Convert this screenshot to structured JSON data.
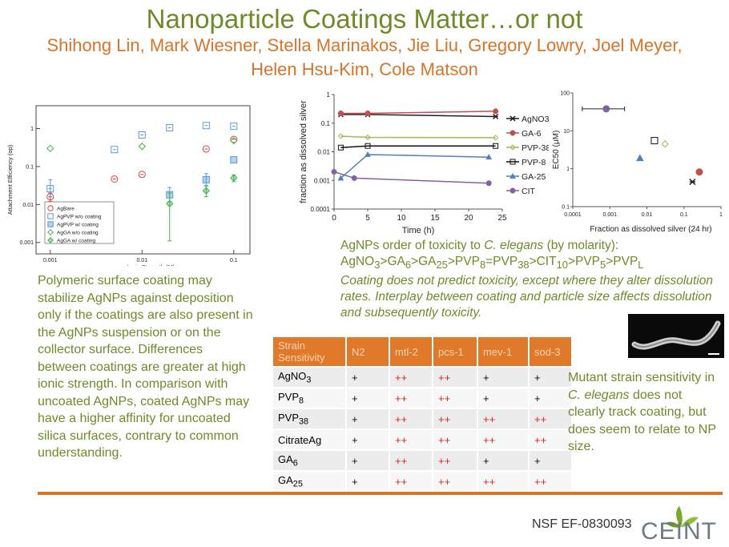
{
  "title": "Nanoparticle Coatings Matter…or not",
  "authors": "Shihong Lin, Mark Wiesner, Stella Marinakos, Jie Liu, Gregory Lowry, Joel Meyer, Helen Hsu-Kim, Cole Matson",
  "left_text": "Polymeric surface coating may stabilize AgNPs against deposition only if the coatings are also present in the AgNPs suspension or on the collector surface. Differences between coatings are greater at high ionic strength. In comparison with uncoated AgNPs, coated AgNPs may have a higher affinity for uncoated silica surfaces, contrary to common understanding.",
  "toxicity": {
    "line1_a": "AgNPs order of toxicity to ",
    "line1_species": "C. elegans",
    "line1_b": " (by molarity):",
    "note": "Coating does not predict toxicity, except where they alter dissolution rates. Interplay between coating and particle size affects dissolution and subsequently toxicity."
  },
  "right_text": {
    "a": "Mutant strain sensitivity in ",
    "species": "C. elegans",
    "b": " does not clearly track coating, but does seem to relate to NP size."
  },
  "table": {
    "headers": [
      "Strain Sensitivity",
      "N2",
      "mtl-2",
      "pcs-1",
      "mev-1",
      "sod-3"
    ],
    "rows": [
      {
        "base": "AgNO",
        "sub": "3",
        "v": [
          "+",
          "++",
          "++",
          "+",
          "+"
        ]
      },
      {
        "base": "PVP",
        "sub": "8",
        "v": [
          "+",
          "++",
          "++",
          "+",
          "+"
        ]
      },
      {
        "base": "PVP",
        "sub": "38",
        "v": [
          "+",
          "++",
          "++",
          "++",
          "++"
        ]
      },
      {
        "base": "CitrateAg",
        "sub": "",
        "v": [
          "+",
          "++",
          "++",
          "++",
          "++"
        ]
      },
      {
        "base": "GA",
        "sub": "6",
        "v": [
          "+",
          "++",
          "++",
          "+",
          "+"
        ]
      },
      {
        "base": "GA",
        "sub": "25",
        "v": [
          "+",
          "++",
          "++",
          "++",
          "++"
        ]
      }
    ]
  },
  "footer": {
    "nsf": "NSF EF-0830093",
    "logo_text": "CEINT"
  },
  "chart_data": [
    {
      "type": "scatter",
      "xlabel": "Ionic Strength (M)",
      "ylabel": "Attachment Efficiency (αp)",
      "x_scale": "log",
      "y_scale": "log",
      "xlim": [
        0.0007,
        0.15
      ],
      "ylim": [
        0.0005,
        4
      ],
      "x_ticks": [
        {
          "v": 0.001,
          "l": "0.001"
        },
        {
          "v": 0.01,
          "l": "0.01"
        },
        {
          "v": 0.1,
          "l": "0.1"
        }
      ],
      "y_ticks": [
        {
          "v": 0.001,
          "l": "0.001"
        },
        {
          "v": 0.01,
          "l": "0.01"
        },
        {
          "v": 0.1,
          "l": "0.1"
        },
        {
          "v": 1,
          "l": "1"
        }
      ],
      "legend_position": "bottom-left",
      "series": [
        {
          "name": "AgBare",
          "marker": "circle",
          "color": "#e04040",
          "points": [
            {
              "x": 0.001,
              "y": 0.016,
              "lo": 0.012,
              "hi": 0.02
            },
            {
              "x": 0.005,
              "y": 0.047
            },
            {
              "x": 0.01,
              "y": 0.062
            },
            {
              "x": 0.05,
              "y": 0.29
            },
            {
              "x": 0.1,
              "y": 0.52
            }
          ]
        },
        {
          "name": "AgPVP w/o coating",
          "marker": "square",
          "color": "#5a9ad8",
          "points": [
            {
              "x": 0.001,
              "y": 0.026,
              "lo": 0.016,
              "hi": 0.045
            },
            {
              "x": 0.005,
              "y": 0.28
            },
            {
              "x": 0.01,
              "y": 0.68
            },
            {
              "x": 0.02,
              "y": 1.05
            },
            {
              "x": 0.05,
              "y": 1.2
            },
            {
              "x": 0.1,
              "y": 1.15
            }
          ]
        },
        {
          "name": "AgPVP w/ coating",
          "marker": "square-filled",
          "color": "#5a9ad8",
          "points": [
            {
              "x": 0.02,
              "y": 0.018,
              "lo": 0.012,
              "hi": 0.028
            },
            {
              "x": 0.05,
              "y": 0.045,
              "lo": 0.032,
              "hi": 0.065
            },
            {
              "x": 0.1,
              "y": 0.15
            }
          ]
        },
        {
          "name": "AgGA w/o coating",
          "marker": "diamond",
          "color": "#4ab04a",
          "points": [
            {
              "x": 0.001,
              "y": 0.3
            },
            {
              "x": 0.01,
              "y": 0.34
            },
            {
              "x": 0.1,
              "y": 0.48
            }
          ]
        },
        {
          "name": "AgGA w/ coating",
          "marker": "diamond-filled",
          "color": "#4ab04a",
          "points": [
            {
              "x": 0.02,
              "y": 0.0105,
              "lo": 0.0011,
              "hi": 0.02
            },
            {
              "x": 0.05,
              "y": 0.023,
              "lo": 0.016,
              "hi": 0.03
            },
            {
              "x": 0.1,
              "y": 0.05,
              "lo": 0.04,
              "hi": 0.06
            }
          ]
        }
      ]
    },
    {
      "type": "line",
      "xlabel": "Time (h)",
      "ylabel": "fraction as  dissolved silver",
      "y_scale": "log",
      "xlim": [
        0,
        25
      ],
      "ylim": [
        0.0001,
        1
      ],
      "x_ticks": [
        0,
        5,
        10,
        15,
        20,
        25
      ],
      "y_ticks": [
        {
          "v": 0.0001,
          "l": "0.0001"
        },
        {
          "v": 0.001,
          "l": "0.001"
        },
        {
          "v": 0.01,
          "l": "0.01"
        },
        {
          "v": 0.1,
          "l": "0.1"
        },
        {
          "v": 1,
          "l": "1"
        }
      ],
      "legend_position": "right",
      "series": [
        {
          "name": "AgNO3",
          "marker": "star",
          "color": "#222222",
          "x": [
            1,
            5,
            24
          ],
          "y": [
            0.2,
            0.2,
            0.17
          ]
        },
        {
          "name": "GA-6",
          "marker": "circle",
          "color": "#c0504d",
          "x": [
            1,
            5,
            24
          ],
          "y": [
            0.22,
            0.22,
            0.26
          ]
        },
        {
          "name": "PVP-38",
          "marker": "diamond",
          "color": "#9bbb59",
          "x": [
            1,
            5,
            24
          ],
          "y": [
            0.035,
            0.032,
            0.031
          ]
        },
        {
          "name": "PVP-8",
          "marker": "square",
          "color": "#111111",
          "x": [
            1,
            5,
            24
          ],
          "y": [
            0.014,
            0.016,
            0.016
          ]
        },
        {
          "name": "GA-25",
          "marker": "triangle",
          "color": "#4f81bd",
          "x": [
            1,
            5,
            23
          ],
          "y": [
            0.0012,
            0.008,
            0.0065
          ]
        },
        {
          "name": "CIT",
          "marker": "circle",
          "color": "#8064a2",
          "x": [
            0,
            3,
            23
          ],
          "y": [
            0.002,
            0.0012,
            0.0008
          ]
        }
      ]
    },
    {
      "type": "scatter",
      "xlabel": "Fraction as dissolved silver (24 hr)",
      "ylabel": "EC50 (μM)",
      "x_scale": "log",
      "y_scale": "log",
      "xlim": [
        0.0001,
        1
      ],
      "ylim": [
        0.1,
        100
      ],
      "x_ticks": [
        {
          "v": 0.0001,
          "l": "0.0001"
        },
        {
          "v": 0.001,
          "l": "0.001"
        },
        {
          "v": 0.01,
          "l": "0.01"
        },
        {
          "v": 0.1,
          "l": "0.1"
        },
        {
          "v": 1,
          "l": "1"
        }
      ],
      "y_ticks": [
        {
          "v": 0.1,
          "l": "0.1"
        },
        {
          "v": 1,
          "l": "1"
        },
        {
          "v": 10,
          "l": "10"
        },
        {
          "v": 100,
          "l": "100"
        }
      ],
      "points": [
        {
          "x": 0.0008,
          "y": 38,
          "xlo": 0.00018,
          "xhi": 0.0025,
          "marker": "circle",
          "color": "#8064a2"
        },
        {
          "x": 0.0065,
          "y": 1.9,
          "marker": "triangle",
          "color": "#4f81bd"
        },
        {
          "x": 0.016,
          "y": 5.5,
          "marker": "square",
          "color": "#111111"
        },
        {
          "x": 0.031,
          "y": 4.5,
          "marker": "diamond",
          "color": "#9bbb59"
        },
        {
          "x": 0.17,
          "y": 0.45,
          "marker": "star",
          "color": "#222222"
        },
        {
          "x": 0.26,
          "y": 0.82,
          "marker": "circle",
          "color": "#c0504d"
        }
      ]
    }
  ]
}
